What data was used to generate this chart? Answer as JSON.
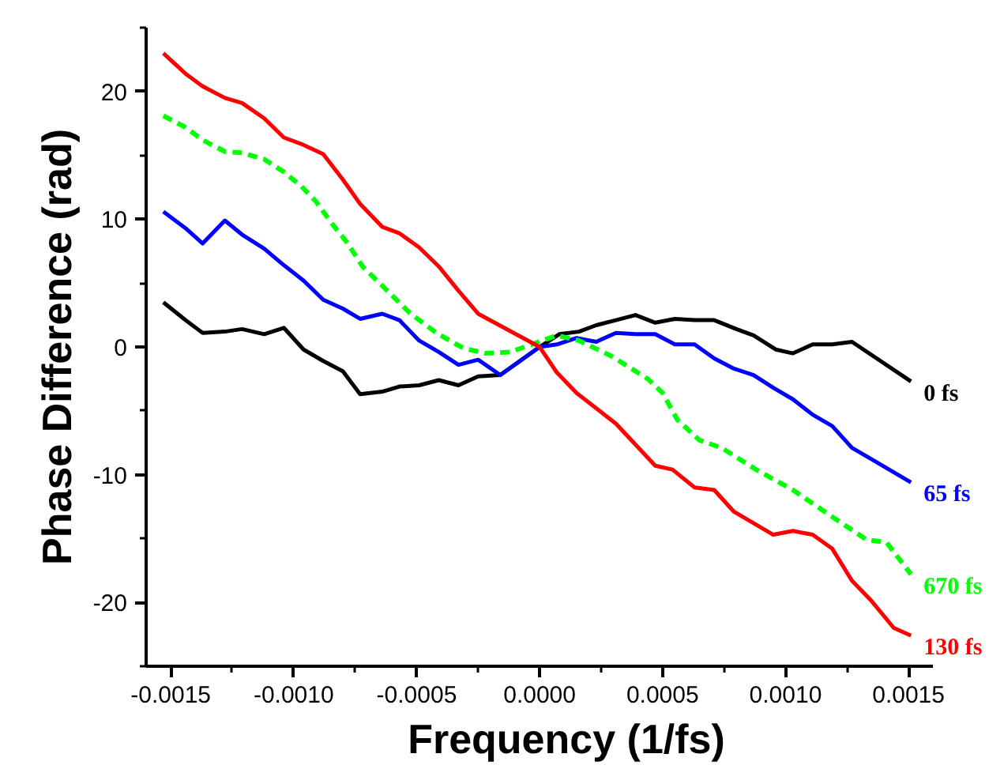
{
  "chart_data": {
    "type": "line",
    "xlabel": "Frequency (1/fs)",
    "ylabel": "Phase Difference (rad)",
    "xlim": [
      -0.0016,
      0.0016
    ],
    "ylim": [
      -25,
      25
    ],
    "xticks": [
      {
        "value": -0.0015,
        "label": "-0.0015"
      },
      {
        "value": -0.00125,
        "label": null
      },
      {
        "value": -0.001,
        "label": "-0.0010"
      },
      {
        "value": -0.00075,
        "label": null
      },
      {
        "value": -0.0005,
        "label": "-0.0005"
      },
      {
        "value": -0.00025,
        "label": null
      },
      {
        "value": 0,
        "label": "0.0000"
      },
      {
        "value": 0.00025,
        "label": null
      },
      {
        "value": 0.0005,
        "label": "0.0005"
      },
      {
        "value": 0.00075,
        "label": null
      },
      {
        "value": 0.001,
        "label": "0.0010"
      },
      {
        "value": 0.00125,
        "label": null
      },
      {
        "value": 0.0015,
        "label": "0.0015"
      }
    ],
    "yticks": [
      {
        "value": -25,
        "label": null
      },
      -20,
      {
        "value": -15,
        "label": null
      },
      -10,
      {
        "value": -5,
        "label": null
      },
      0,
      {
        "value": 5,
        "label": null
      },
      10,
      {
        "value": 15,
        "label": null
      },
      20,
      {
        "value": 25,
        "label": null
      }
    ],
    "grid": false,
    "marker": "none",
    "series": [
      {
        "name": "0 fs",
        "color": "#000000",
        "line_style": "solid",
        "x": [
          -0.00153,
          -0.00144,
          -0.00137,
          -0.00128,
          -0.00121,
          -0.00112,
          -0.00104,
          -0.00096,
          -0.00088,
          -0.0008,
          -0.00073,
          -0.00064,
          -0.00057,
          -0.00049,
          -0.00041,
          -0.00033,
          -0.00025,
          -0.00016,
          0,
          8e-05,
          0.00016,
          0.00023,
          0.00031,
          0.00039,
          0.00047,
          0.00055,
          0.00063,
          0.00071,
          0.0008,
          0.00087,
          0.00096,
          0.00103,
          0.00111,
          0.00119,
          0.00127,
          0.00151
        ],
        "values": [
          3.5,
          2.1,
          1.1,
          1.2,
          1.4,
          1.0,
          1.5,
          -0.2,
          -1.1,
          -1.9,
          -3.7,
          -3.5,
          -3.1,
          -3.0,
          -2.6,
          -3.0,
          -2.3,
          -2.2,
          0,
          1.0,
          1.2,
          1.7,
          2.1,
          2.5,
          1.9,
          2.2,
          2.1,
          2.1,
          1.4,
          0.9,
          -0.2,
          -0.5,
          0.2,
          0.2,
          0.4,
          -2.7
        ]
      },
      {
        "name": "65 fs",
        "color": "#0000ff",
        "line_style": "solid",
        "x": [
          -0.00153,
          -0.00144,
          -0.00137,
          -0.00128,
          -0.00121,
          -0.00112,
          -0.00104,
          -0.00096,
          -0.00088,
          -0.0008,
          -0.00073,
          -0.00064,
          -0.00057,
          -0.00049,
          -0.00041,
          -0.00033,
          -0.00025,
          -0.00016,
          0,
          7e-05,
          0.00015,
          0.00023,
          0.00031,
          0.00039,
          0.00047,
          0.00055,
          0.00063,
          0.00071,
          0.00079,
          0.00087,
          0.00095,
          0.00103,
          0.00111,
          0.00119,
          0.00127,
          0.00135,
          0.00151
        ],
        "values": [
          10.6,
          9.3,
          8.1,
          9.9,
          8.8,
          7.7,
          6.4,
          5.2,
          3.7,
          3.0,
          2.2,
          2.6,
          2.1,
          0.5,
          -0.4,
          -1.4,
          -1.0,
          -2.2,
          0,
          0.2,
          0.7,
          0.4,
          1.1,
          1.0,
          1.0,
          0.2,
          0.2,
          -0.9,
          -1.7,
          -2.2,
          -3.2,
          -4.1,
          -5.3,
          -6.2,
          -7.9,
          -8.8,
          -10.6
        ]
      },
      {
        "name": "670 fs",
        "color": "#00ff00",
        "line_style": "dashed",
        "x": [
          -0.00153,
          -0.00144,
          -0.00137,
          -0.00128,
          -0.00121,
          -0.00112,
          -0.00104,
          -0.00097,
          -0.00091,
          -0.00085,
          -0.00078,
          -0.00072,
          -0.00063,
          -0.00053,
          -0.00042,
          -0.00031,
          -0.00022,
          -0.00012,
          7e-05,
          0.00016,
          0.00029,
          0.00044,
          0.0005,
          0.00056,
          0.00065,
          0.00074,
          0.00088,
          0.00103,
          0.00119,
          0.00133,
          0.00141,
          0.00151
        ],
        "values": [
          18.1,
          17.2,
          16.2,
          15.3,
          15.2,
          14.7,
          13.7,
          12.6,
          11.4,
          9.8,
          8.1,
          6.3,
          4.6,
          2.7,
          1.1,
          -0.1,
          -0.5,
          -0.4,
          0.9,
          0.5,
          -0.7,
          -2.5,
          -3.6,
          -5.7,
          -7.3,
          -7.9,
          -9.6,
          -11.2,
          -13.3,
          -15.1,
          -15.3,
          -17.8
        ]
      },
      {
        "name": "130 fs",
        "color": "#ff0000",
        "line_style": "solid",
        "x": [
          -0.00153,
          -0.00144,
          -0.00137,
          -0.00128,
          -0.00121,
          -0.00112,
          -0.00104,
          -0.00097,
          -0.00088,
          -0.0008,
          -0.00073,
          -0.00064,
          -0.00057,
          -0.00049,
          -0.00041,
          -0.00033,
          -0.00025,
          0,
          7e-05,
          0.00015,
          0.00031,
          0.00047,
          0.00054,
          0.00063,
          0.00071,
          0.00079,
          0.00095,
          0.00103,
          0.00111,
          0.00119,
          0.00127,
          0.00135,
          0.00144,
          0.00151
        ],
        "values": [
          23.0,
          21.4,
          20.4,
          19.5,
          19.1,
          17.9,
          16.4,
          15.9,
          15.1,
          13.1,
          11.2,
          9.4,
          8.9,
          7.8,
          6.3,
          4.4,
          2.6,
          0,
          -2.0,
          -3.6,
          -6.0,
          -9.3,
          -9.6,
          -11.0,
          -11.2,
          -12.9,
          -14.7,
          -14.4,
          -14.7,
          -15.8,
          -18.3,
          -19.9,
          -22.0,
          -22.6
        ]
      }
    ]
  }
}
